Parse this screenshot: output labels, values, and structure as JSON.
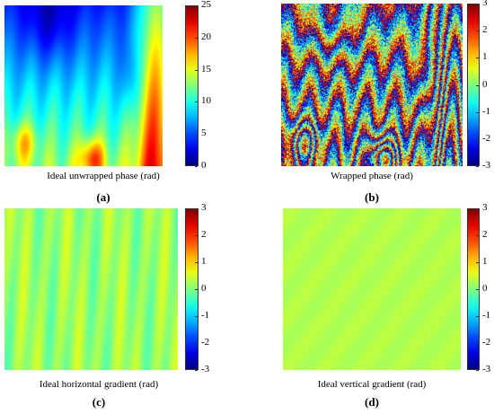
{
  "colormap": "jet",
  "chart_data": [
    {
      "type": "heatmap",
      "title": "",
      "caption": "Ideal unwrapped phase (rad)",
      "sublabel": "(a)",
      "pattern": "unwrapped",
      "colorbar": {
        "range": [
          0,
          25
        ],
        "ticks": [
          "0",
          "5",
          "10",
          "15",
          "20",
          "25"
        ]
      }
    },
    {
      "type": "heatmap",
      "title": "",
      "caption": "Wrapped phase (rad)",
      "sublabel": "(b)",
      "pattern": "wrapped",
      "colorbar": {
        "range": [
          -3,
          3
        ],
        "ticks": [
          "-3",
          "-2",
          "-1",
          "0",
          "1",
          "2",
          "3"
        ]
      }
    },
    {
      "type": "heatmap",
      "title": "",
      "caption": "Ideal horizontal gradient (rad)",
      "sublabel": "(c)",
      "pattern": "hgrad",
      "colorbar": {
        "range": [
          -3,
          3
        ],
        "ticks": [
          "-3",
          "-2",
          "-1",
          "0",
          "1",
          "2",
          "3"
        ]
      }
    },
    {
      "type": "heatmap",
      "title": "",
      "caption": "Ideal vertical gradient (rad)",
      "sublabel": "(d)",
      "pattern": "vgrad",
      "colorbar": {
        "range": [
          -3,
          3
        ],
        "ticks": [
          "-3",
          "-2",
          "-1",
          "0",
          "1",
          "2",
          "3"
        ]
      }
    }
  ]
}
